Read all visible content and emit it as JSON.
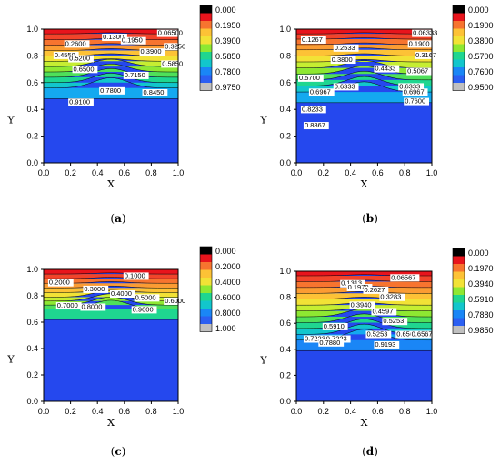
{
  "chart_data": [
    {
      "id": "a",
      "type": "heatmap",
      "caption": "(a)",
      "xlabel": "X",
      "ylabel": "Y",
      "xlim": [
        0,
        1
      ],
      "ylim": [
        0,
        1
      ],
      "xticks": [
        "0.0",
        "0.2",
        "0.4",
        "0.6",
        "0.8",
        "1.0"
      ],
      "yticks": [
        "0.0",
        "0.2",
        "0.4",
        "0.6",
        "0.8",
        "1.0"
      ],
      "legend": [
        "0.000",
        "0.1950",
        "0.3900",
        "0.5850",
        "0.7800",
        "0.9750"
      ],
      "contours": [
        {
          "label": "0.06500",
          "x": 0.85,
          "y": 0.955
        },
        {
          "label": "0.1300",
          "x": 0.44,
          "y": 0.925
        },
        {
          "label": "0.1950",
          "x": 0.58,
          "y": 0.9
        },
        {
          "label": "0.2600",
          "x": 0.16,
          "y": 0.875
        },
        {
          "label": "0.3250",
          "x": 0.9,
          "y": 0.855
        },
        {
          "label": "0.4550",
          "x": 0.08,
          "y": 0.79
        },
        {
          "label": "0.3900",
          "x": 0.72,
          "y": 0.815
        },
        {
          "label": "0.5200",
          "x": 0.19,
          "y": 0.765
        },
        {
          "label": "0.5850",
          "x": 0.88,
          "y": 0.725
        },
        {
          "label": "0.6500",
          "x": 0.22,
          "y": 0.685
        },
        {
          "label": "0.7150",
          "x": 0.6,
          "y": 0.64
        },
        {
          "label": "0.7800",
          "x": 0.42,
          "y": 0.525
        },
        {
          "label": "0.8450",
          "x": 0.74,
          "y": 0.51
        },
        {
          "label": "0.9100",
          "x": 0.19,
          "y": 0.44
        }
      ],
      "lines": [
        0.965,
        0.92,
        0.88,
        0.84,
        0.8,
        0.76,
        0.72,
        0.68,
        0.64,
        0.6,
        0.56
      ]
    },
    {
      "id": "b",
      "type": "heatmap",
      "caption": "(b)",
      "xlabel": "X",
      "ylabel": "Y",
      "xlim": [
        0,
        1
      ],
      "ylim": [
        0,
        1
      ],
      "xticks": [
        "0.0",
        "0.2",
        "0.4",
        "0.6",
        "0.8",
        "1.0"
      ],
      "yticks": [
        "0.0",
        "0.2",
        "0.4",
        "0.6",
        "0.8",
        "1.0"
      ],
      "legend": [
        "0.000",
        "0.1900",
        "0.3800",
        "0.5700",
        "0.7600",
        "0.9500"
      ],
      "contours": [
        {
          "label": "0.06333",
          "x": 0.86,
          "y": 0.955
        },
        {
          "label": "0.1267",
          "x": 0.04,
          "y": 0.905
        },
        {
          "label": "0.1900",
          "x": 0.83,
          "y": 0.875
        },
        {
          "label": "0.2533",
          "x": 0.28,
          "y": 0.845
        },
        {
          "label": "0.3167",
          "x": 0.88,
          "y": 0.79
        },
        {
          "label": "0.3800",
          "x": 0.26,
          "y": 0.755
        },
        {
          "label": "0.4433",
          "x": 0.58,
          "y": 0.69
        },
        {
          "label": "0.5067",
          "x": 0.82,
          "y": 0.67
        },
        {
          "label": "0.5700",
          "x": 0.02,
          "y": 0.62
        },
        {
          "label": "0.6333",
          "x": 0.28,
          "y": 0.555
        },
        {
          "label": "0.6333",
          "x": 0.76,
          "y": 0.555
        },
        {
          "label": "0.6967",
          "x": 0.1,
          "y": 0.515
        },
        {
          "label": "0.6967",
          "x": 0.79,
          "y": 0.515
        },
        {
          "label": "0.7600",
          "x": 0.8,
          "y": 0.445
        },
        {
          "label": "0.8233",
          "x": 0.04,
          "y": 0.385
        },
        {
          "label": "0.8867",
          "x": 0.06,
          "y": 0.265
        }
      ],
      "lines": [
        0.965,
        0.925,
        0.885,
        0.845,
        0.8,
        0.755,
        0.71,
        0.665,
        0.62,
        0.575,
        0.53
      ]
    },
    {
      "id": "c",
      "type": "heatmap",
      "caption": "(c)",
      "xlabel": "X",
      "ylabel": "Y",
      "xlim": [
        0,
        1
      ],
      "ylim": [
        0,
        1
      ],
      "xticks": [
        "0.0",
        "0.2",
        "0.4",
        "0.6",
        "0.8",
        "1.0"
      ],
      "yticks": [
        "0.0",
        "0.2",
        "0.4",
        "0.6",
        "0.8",
        "1.0"
      ],
      "legend": [
        "0.000",
        "0.2000",
        "0.4000",
        "0.6000",
        "0.8000",
        "1.000"
      ],
      "contours": [
        {
          "label": "0.1000",
          "x": 0.6,
          "y": 0.935
        },
        {
          "label": "0.2000",
          "x": 0.04,
          "y": 0.885
        },
        {
          "label": "0.3000",
          "x": 0.3,
          "y": 0.835
        },
        {
          "label": "0.4000",
          "x": 0.5,
          "y": 0.8
        },
        {
          "label": "0.5000",
          "x": 0.68,
          "y": 0.77
        },
        {
          "label": "0.6000",
          "x": 0.9,
          "y": 0.745
        },
        {
          "label": "0.7000",
          "x": 0.1,
          "y": 0.71
        },
        {
          "label": "0.8000",
          "x": 0.28,
          "y": 0.7
        },
        {
          "label": "0.9000",
          "x": 0.66,
          "y": 0.68
        }
      ],
      "lines": [
        0.965,
        0.93,
        0.895,
        0.86,
        0.825,
        0.79,
        0.76,
        0.73,
        0.7
      ]
    },
    {
      "id": "d",
      "type": "heatmap",
      "caption": "(d)",
      "xlabel": "X",
      "ylabel": "Y",
      "xlim": [
        0,
        1
      ],
      "ylim": [
        0,
        1
      ],
      "xticks": [
        "0.0",
        "0.2",
        "0.4",
        "0.6",
        "0.8",
        "1.0"
      ],
      "yticks": [
        "0.0",
        "0.2",
        "0.4",
        "0.6",
        "0.8",
        "1.0"
      ],
      "legend": [
        "0.000",
        "0.1970",
        "0.3940",
        "0.5910",
        "0.7880",
        "0.9850"
      ],
      "contours": [
        {
          "label": "0.06567",
          "x": 0.7,
          "y": 0.935
        },
        {
          "label": "0.1313",
          "x": 0.33,
          "y": 0.89
        },
        {
          "label": "0.1970",
          "x": 0.38,
          "y": 0.86
        },
        {
          "label": "0.2627",
          "x": 0.5,
          "y": 0.84
        },
        {
          "label": "0.3283",
          "x": 0.62,
          "y": 0.785
        },
        {
          "label": "0.3940",
          "x": 0.4,
          "y": 0.725
        },
        {
          "label": "0.4597",
          "x": 0.56,
          "y": 0.675
        },
        {
          "label": "0.5253",
          "x": 0.64,
          "y": 0.6
        },
        {
          "label": "0.5910",
          "x": 0.2,
          "y": 0.56
        },
        {
          "label": "0.5253",
          "x": 0.52,
          "y": 0.5
        },
        {
          "label": "0.6567",
          "x": 0.74,
          "y": 0.5
        },
        {
          "label": "0.6567",
          "x": 0.85,
          "y": 0.5
        },
        {
          "label": "0.7223",
          "x": 0.06,
          "y": 0.465
        },
        {
          "label": "0.7223",
          "x": 0.22,
          "y": 0.465
        },
        {
          "label": "0.7880",
          "x": 0.17,
          "y": 0.435
        },
        {
          "label": "0.9193",
          "x": 0.58,
          "y": 0.42
        }
      ],
      "lines": [
        0.965,
        0.92,
        0.875,
        0.83,
        0.785,
        0.74,
        0.695,
        0.65,
        0.605,
        0.56,
        0.515,
        0.47
      ]
    }
  ]
}
